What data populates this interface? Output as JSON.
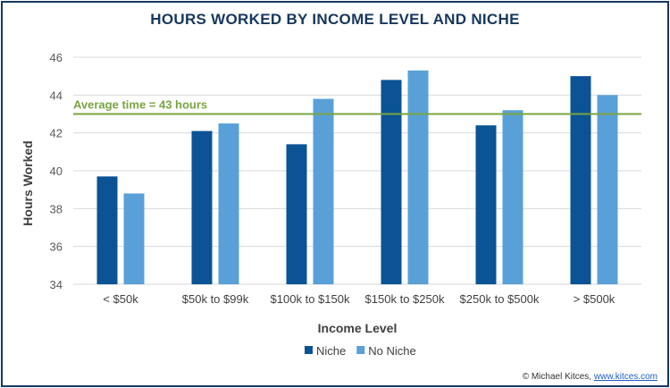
{
  "chart_data": {
    "type": "bar",
    "title": "HOURS WORKED BY INCOME LEVEL AND NICHE",
    "xlabel": "Income Level",
    "ylabel": "Hours Worked",
    "ylim": [
      34,
      46
    ],
    "yticks": [
      34,
      36,
      38,
      40,
      42,
      44,
      46
    ],
    "grid": true,
    "legend_position": "bottom",
    "categories": [
      "< $50k",
      "$50k to $99k",
      "$100k to $150k",
      "$150k to $250k",
      "$250k to $500k",
      "> $500k"
    ],
    "series": [
      {
        "name": "Niche",
        "color": "#0b5394",
        "values": [
          39.7,
          42.1,
          41.4,
          44.8,
          42.4,
          45.0
        ]
      },
      {
        "name": "No Niche",
        "color": "#5aa0d8",
        "values": [
          38.8,
          42.5,
          43.8,
          45.3,
          43.2,
          44.0
        ]
      }
    ],
    "reference_line": {
      "value": 43,
      "label": "Average time = 43 hours",
      "color": "#7aa441"
    }
  },
  "footer": {
    "credit": "© Michael Kitces,",
    "link": "www.kitces.com"
  }
}
